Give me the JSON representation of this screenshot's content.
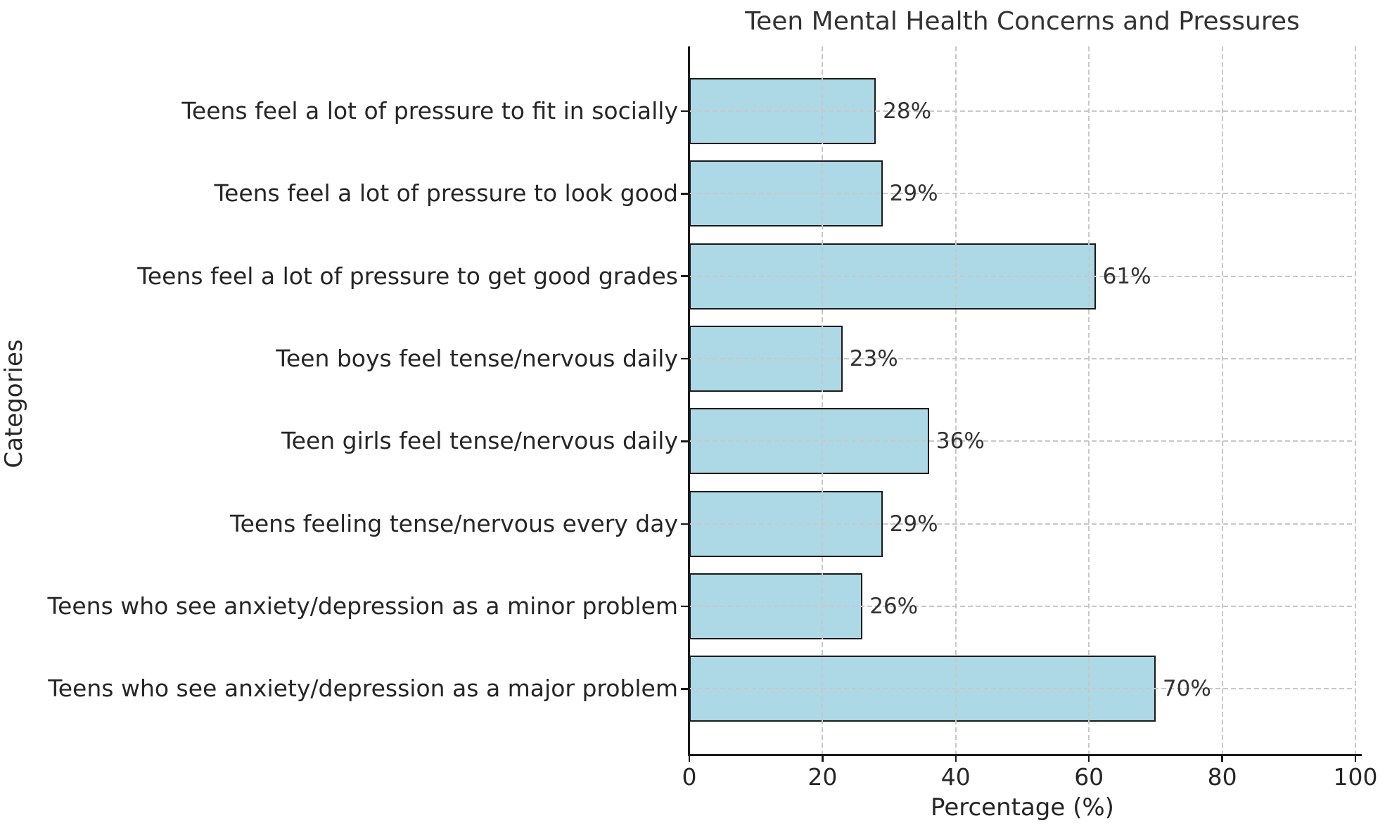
{
  "chart_data": {
    "type": "bar",
    "orientation": "horizontal",
    "title": "Teen Mental Health Concerns and Pressures",
    "xlabel": "Percentage (%)",
    "ylabel": "Categories",
    "categories": [
      "Teens feel a lot of pressure to fit in socially",
      "Teens feel a lot of pressure to look good",
      "Teens feel a lot of pressure to get good grades",
      "Teen boys feel tense/nervous daily",
      "Teen girls feel tense/nervous daily",
      "Teens feeling tense/nervous every day",
      "Teens who see anxiety/depression as a minor problem",
      "Teens who see anxiety/depression as a major problem"
    ],
    "values": [
      28,
      29,
      61,
      23,
      36,
      29,
      26,
      70
    ],
    "value_labels": [
      "28%",
      "29%",
      "61%",
      "23%",
      "36%",
      "29%",
      "26%",
      "70%"
    ],
    "xlim": [
      0,
      100
    ],
    "xticks": [
      0,
      20,
      40,
      60,
      80,
      100
    ],
    "grid": "dashed, horizontal and vertical, drawn over bars",
    "legend": "none",
    "bar_color": "#ADD8E6",
    "bar_edge_color": "#1a1a1a",
    "grid_color": "#c8c8c8",
    "text_color": "#262626"
  }
}
